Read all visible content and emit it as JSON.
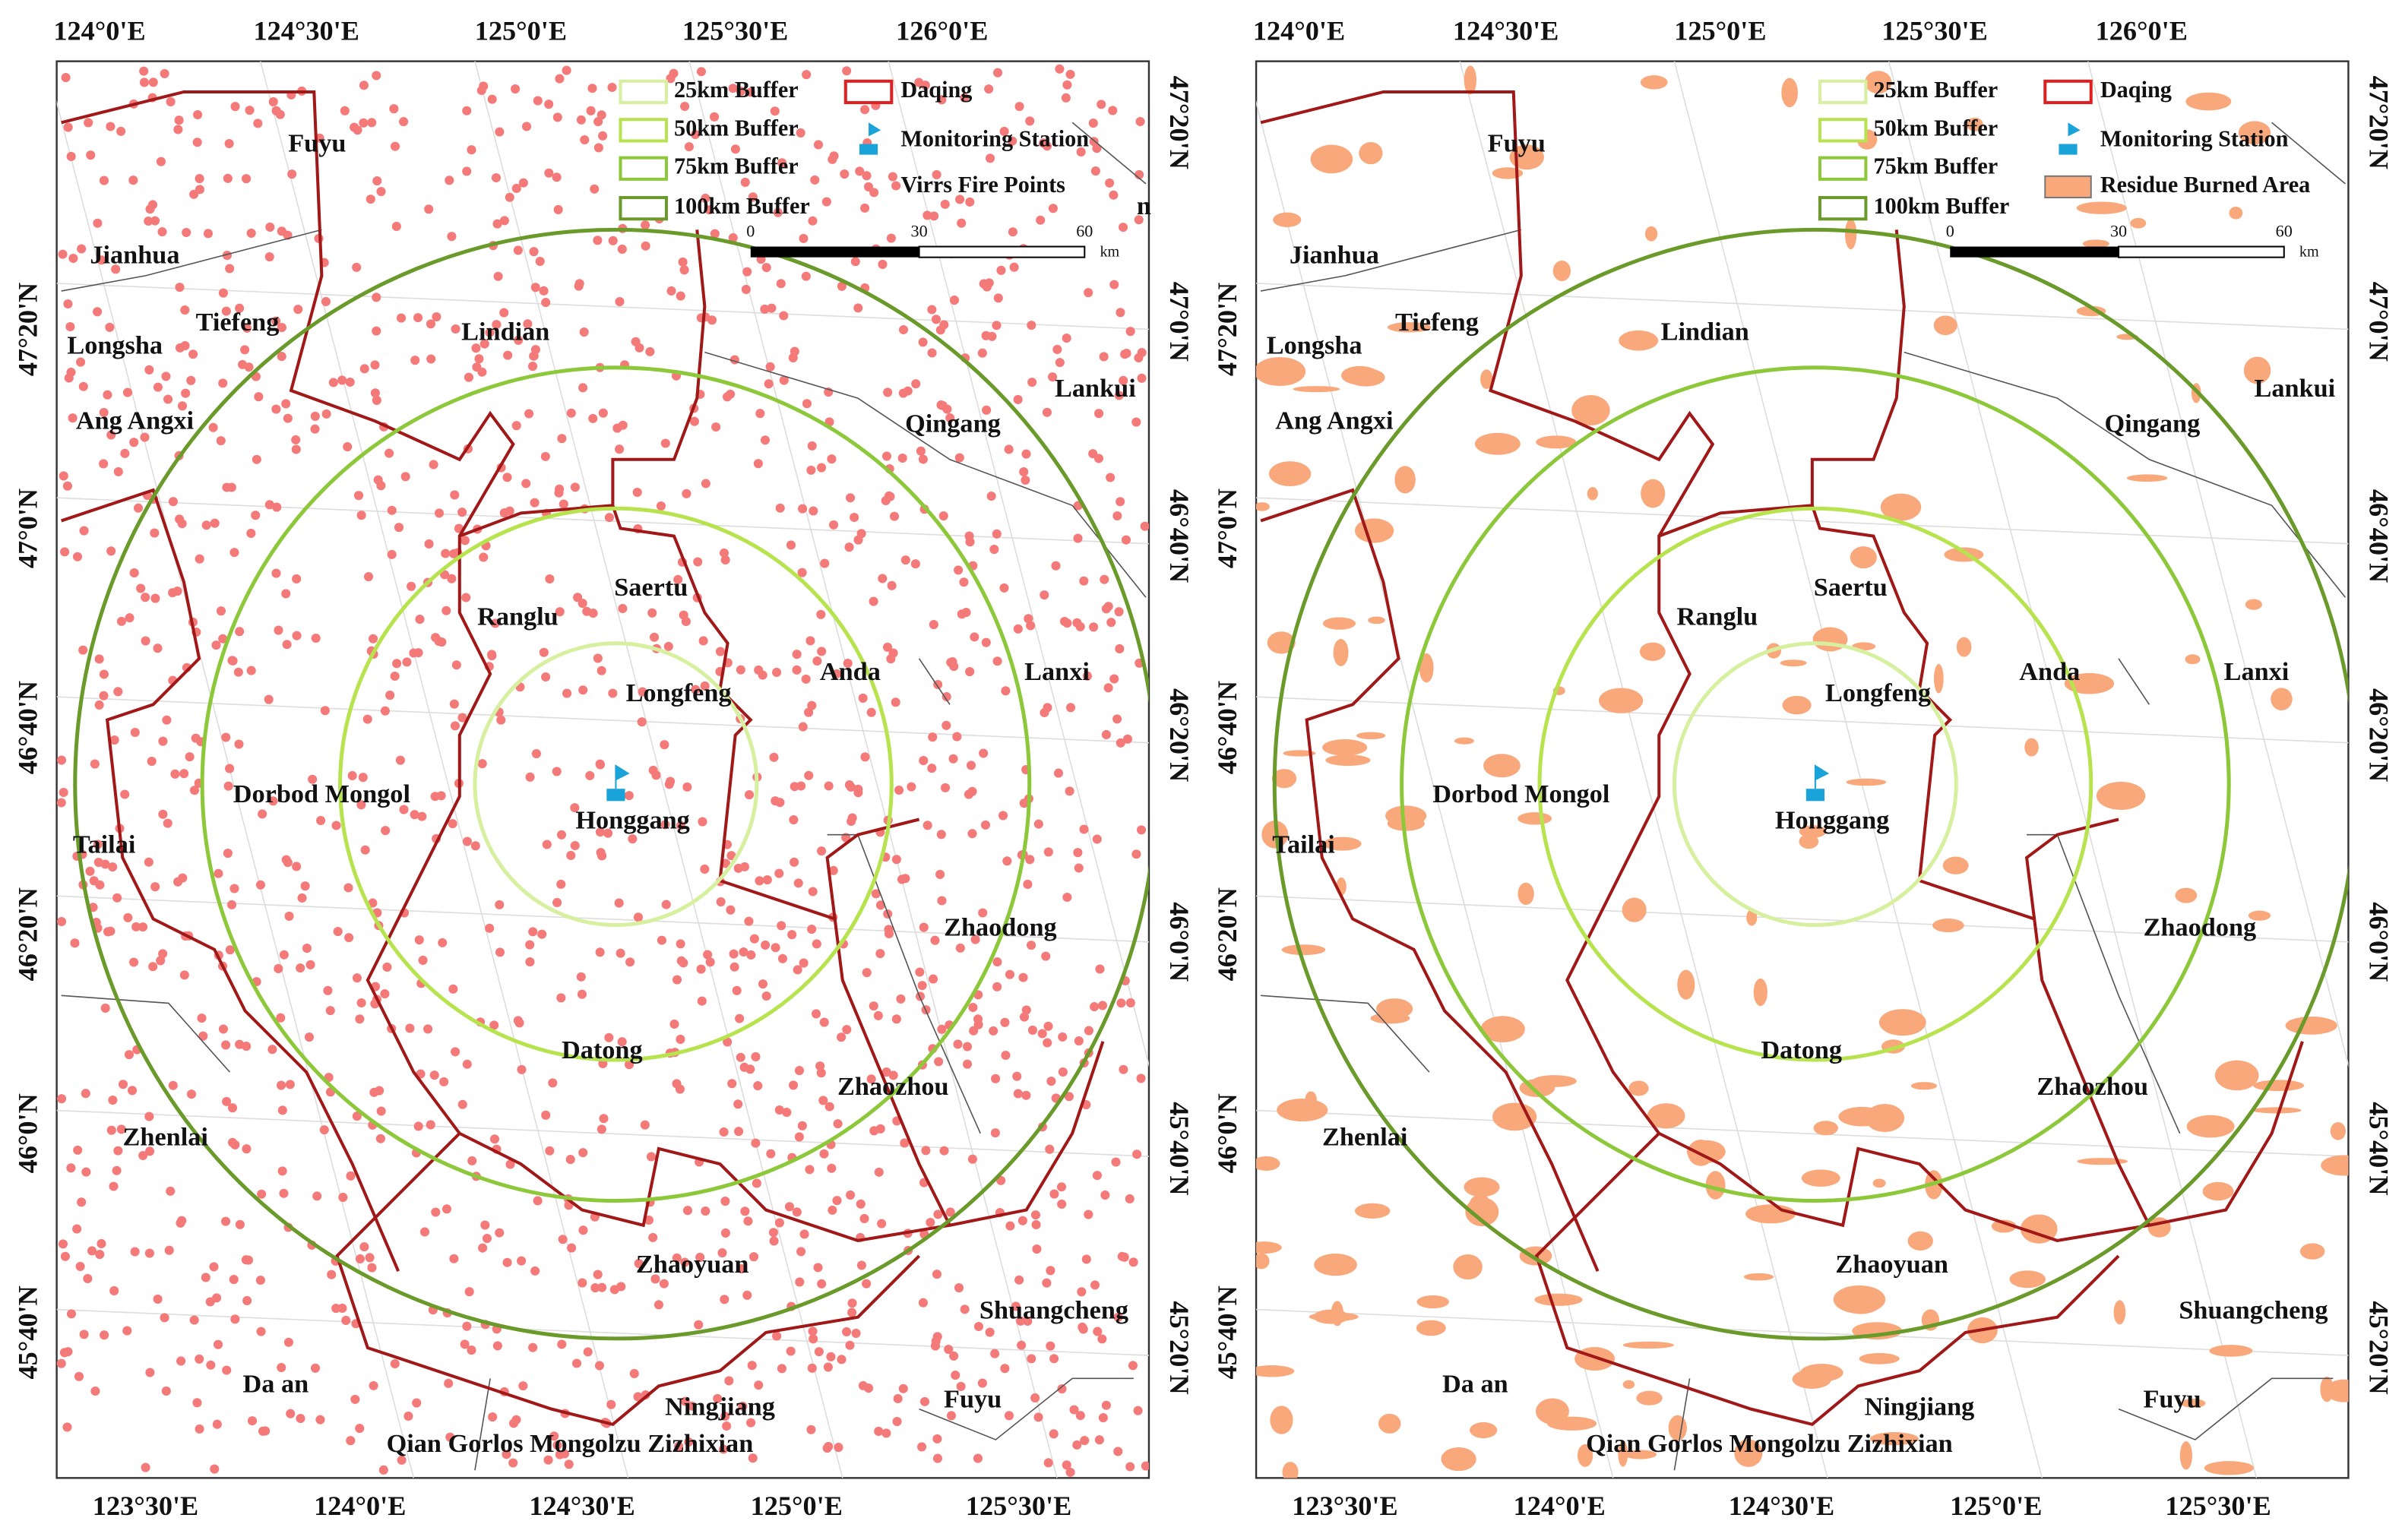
{
  "panels": [
    {
      "top_labels": [
        "124°0'E",
        "124°30'E",
        "125°0'E",
        "125°30'E",
        "126°0'E"
      ],
      "bottom_labels": [
        "123°30'E",
        "124°0'E",
        "124°30'E",
        "125°0'E",
        "125°30'E"
      ],
      "left_labels": [
        "47°20'N",
        "47°0'N",
        "46°40'N",
        "46°20'N",
        "46°0'N",
        "45°40'N"
      ],
      "right_labels": [
        "47°20'N",
        "47°0'N",
        "46°40'N",
        "46°20'N",
        "46°0'N",
        "45°40'N",
        "45°20'N"
      ],
      "places": [
        "Fuyu",
        "Jianhua",
        "Tiefeng",
        "Longsha",
        "Lindian",
        "Lankui",
        "Ang Angxi",
        "Qingang",
        "Saertu",
        "Ranglu",
        "Anda",
        "Lanxi",
        "Longfeng",
        "Dorbod Mongol",
        "Honggang",
        "Tailai",
        "Zhaodong",
        "Datong",
        "Zhaozhou",
        "Zhenlai",
        "Zhaoyuan",
        "Shuangcheng",
        "Da an",
        "Fuyu",
        "Ningjiang",
        "Qian Gorlos Mongolzu Zizhixian"
      ],
      "legend": [
        "25km Buffer",
        "50km Buffer",
        "75km Buffer",
        "100km Buffer",
        "Daqing",
        "Monitoring Station",
        "Virrs Fire Points"
      ],
      "scale": {
        "ticks": [
          0,
          30,
          60
        ],
        "unit": "km"
      },
      "stray": "n"
    },
    {
      "top_labels": [
        "124°0'E",
        "124°30'E",
        "125°0'E",
        "125°30'E",
        "126°0'E"
      ],
      "bottom_labels": [
        "123°30'E",
        "124°0'E",
        "124°30'E",
        "125°0'E",
        "125°30'E"
      ],
      "left_labels": [
        "47°20'N",
        "47°0'N",
        "46°40'N",
        "46°20'N",
        "46°0'N",
        "45°40'N"
      ],
      "right_labels": [
        "47°20'N",
        "47°0'N",
        "46°40'N",
        "46°20'N",
        "46°0'N",
        "45°40'N",
        "45°20'N"
      ],
      "places": [
        "Fuyu",
        "Jianhua",
        "Tiefeng",
        "Longsha",
        "Lindian",
        "Lankui",
        "Ang Angxi",
        "Qingang",
        "Saertu",
        "Ranglu",
        "Anda",
        "Lanxi",
        "Longfeng",
        "Dorbod Mongol",
        "Honggang",
        "Tailai",
        "Zhaodong",
        "Datong",
        "Zhaozhou",
        "Zhenlai",
        "Zhaoyuan",
        "Shuangcheng",
        "Da an",
        "Fuyu",
        "Ningjiang",
        "Qian Gorlos Mongolzu Zizhixian"
      ],
      "legend": [
        "25km Buffer",
        "50km Buffer",
        "75km Buffer",
        "100km Buffer",
        "Daqing",
        "Monitoring Station",
        "Residue Burned Area"
      ],
      "scale": {
        "ticks": [
          0,
          30,
          60
        ],
        "unit": "km"
      }
    }
  ]
}
